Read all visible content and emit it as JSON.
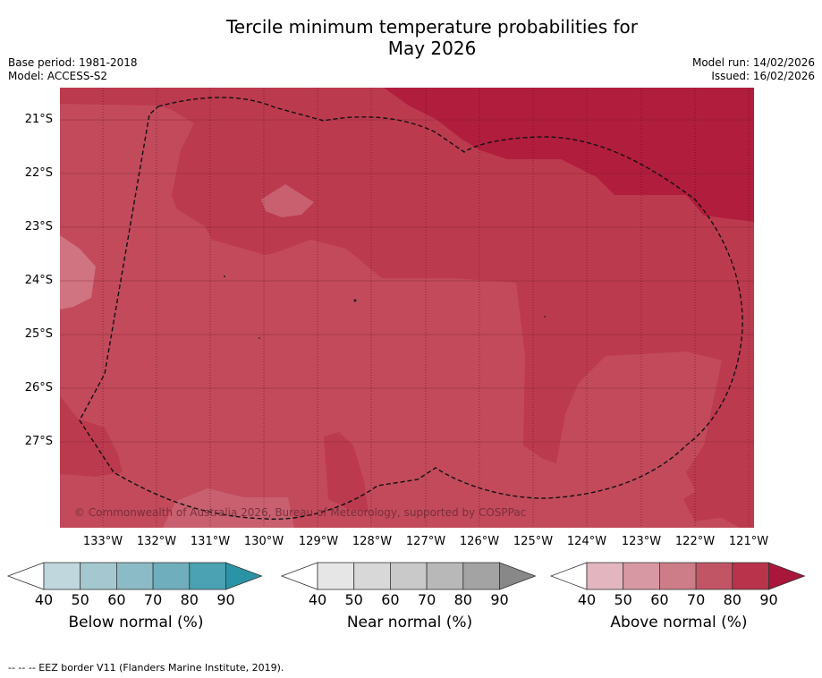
{
  "title_line1": "Tercile minimum temperature probabilities for",
  "title_line2": "May 2026",
  "base_period": "Base period: 1981-2018",
  "model": "Model: ACCESS-S2",
  "model_run": "Model run: 14/02/2026",
  "issued": "Issued: 16/02/2026",
  "copyright": "© Commonwealth of Australia 2026, Bureau of Meteorology, supported by COSPPac",
  "lat_labels": [
    "21°S",
    "22°S",
    "23°S",
    "24°S",
    "25°S",
    "26°S",
    "27°S"
  ],
  "lon_labels": [
    "133°W",
    "132°W",
    "131°W",
    "130°W",
    "129°W",
    "128°W",
    "127°W",
    "126°W",
    "125°W",
    "124°W",
    "123°W",
    "122°W",
    "121°W"
  ],
  "legends": [
    {
      "title": "Below normal (%)",
      "ticks": [
        "40",
        "50",
        "60",
        "70",
        "80",
        "90"
      ],
      "colors": [
        "#ffffff",
        "#c1d7de",
        "#a5c8d0",
        "#8bbbc6",
        "#6fafbd",
        "#4aa2b2",
        "#2b93a6"
      ]
    },
    {
      "title": "Near normal (%)",
      "ticks": [
        "40",
        "50",
        "60",
        "70",
        "80",
        "90"
      ],
      "colors": [
        "#ffffff",
        "#e6e6e6",
        "#d8d8d8",
        "#c9c9c9",
        "#b8b8b8",
        "#a3a3a3",
        "#888888"
      ]
    },
    {
      "title": "Above normal (%)",
      "ticks": [
        "40",
        "50",
        "60",
        "70",
        "80",
        "90"
      ],
      "colors": [
        "#ffffff",
        "#e3b5bf",
        "#d898a3",
        "#cd7d88",
        "#c25565",
        "#b9334b",
        "#a8173a"
      ]
    }
  ],
  "footnote": "--  --  -- EEZ border V11 (Flanders Marine Institute, 2019)."
}
